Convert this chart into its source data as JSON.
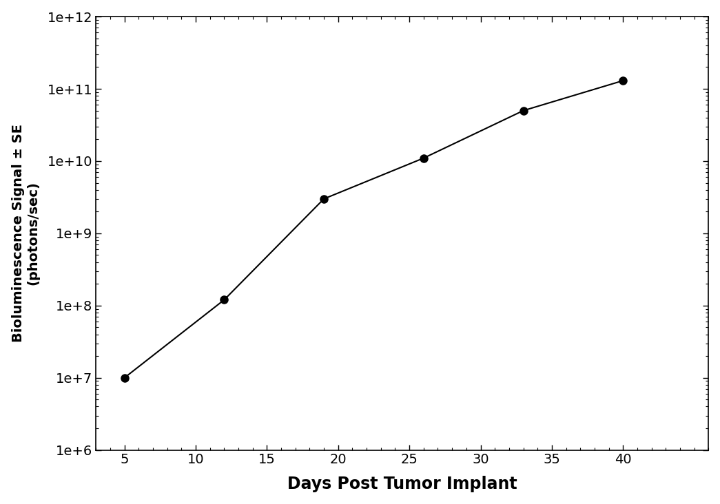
{
  "x": [
    5,
    12,
    19,
    26,
    33,
    40
  ],
  "y": [
    10000000.0,
    120000000.0,
    3000000000.0,
    11000000000.0,
    50000000000.0,
    130000000000.0
  ],
  "yerr": [
    300000.0,
    5000000.0,
    100000000.0,
    300000000.0,
    2000000000.0,
    4000000000.0
  ],
  "xlabel": "Days Post Tumor Implant",
  "ylabel": "Bioluminescence Signal ± SE\n(photons/sec)",
  "xlim": [
    3,
    46
  ],
  "ylim": [
    1000000.0,
    1000000000000.0
  ],
  "xticks": [
    5,
    10,
    15,
    20,
    25,
    30,
    35,
    40
  ],
  "yticks": [
    1000000.0,
    10000000.0,
    100000000.0,
    1000000000.0,
    10000000000.0,
    100000000000.0,
    1000000000000.0
  ],
  "ytick_labels": [
    "1e+6",
    "1e+7",
    "1e+8",
    "1e+9",
    "1e+10",
    "1e+11",
    "1e+12"
  ],
  "line_color": "#000000",
  "marker_color": "#000000",
  "marker_size": 8,
  "line_width": 1.5,
  "background_color": "#ffffff",
  "xlabel_fontsize": 17,
  "ylabel_fontsize": 14,
  "tick_fontsize": 14
}
